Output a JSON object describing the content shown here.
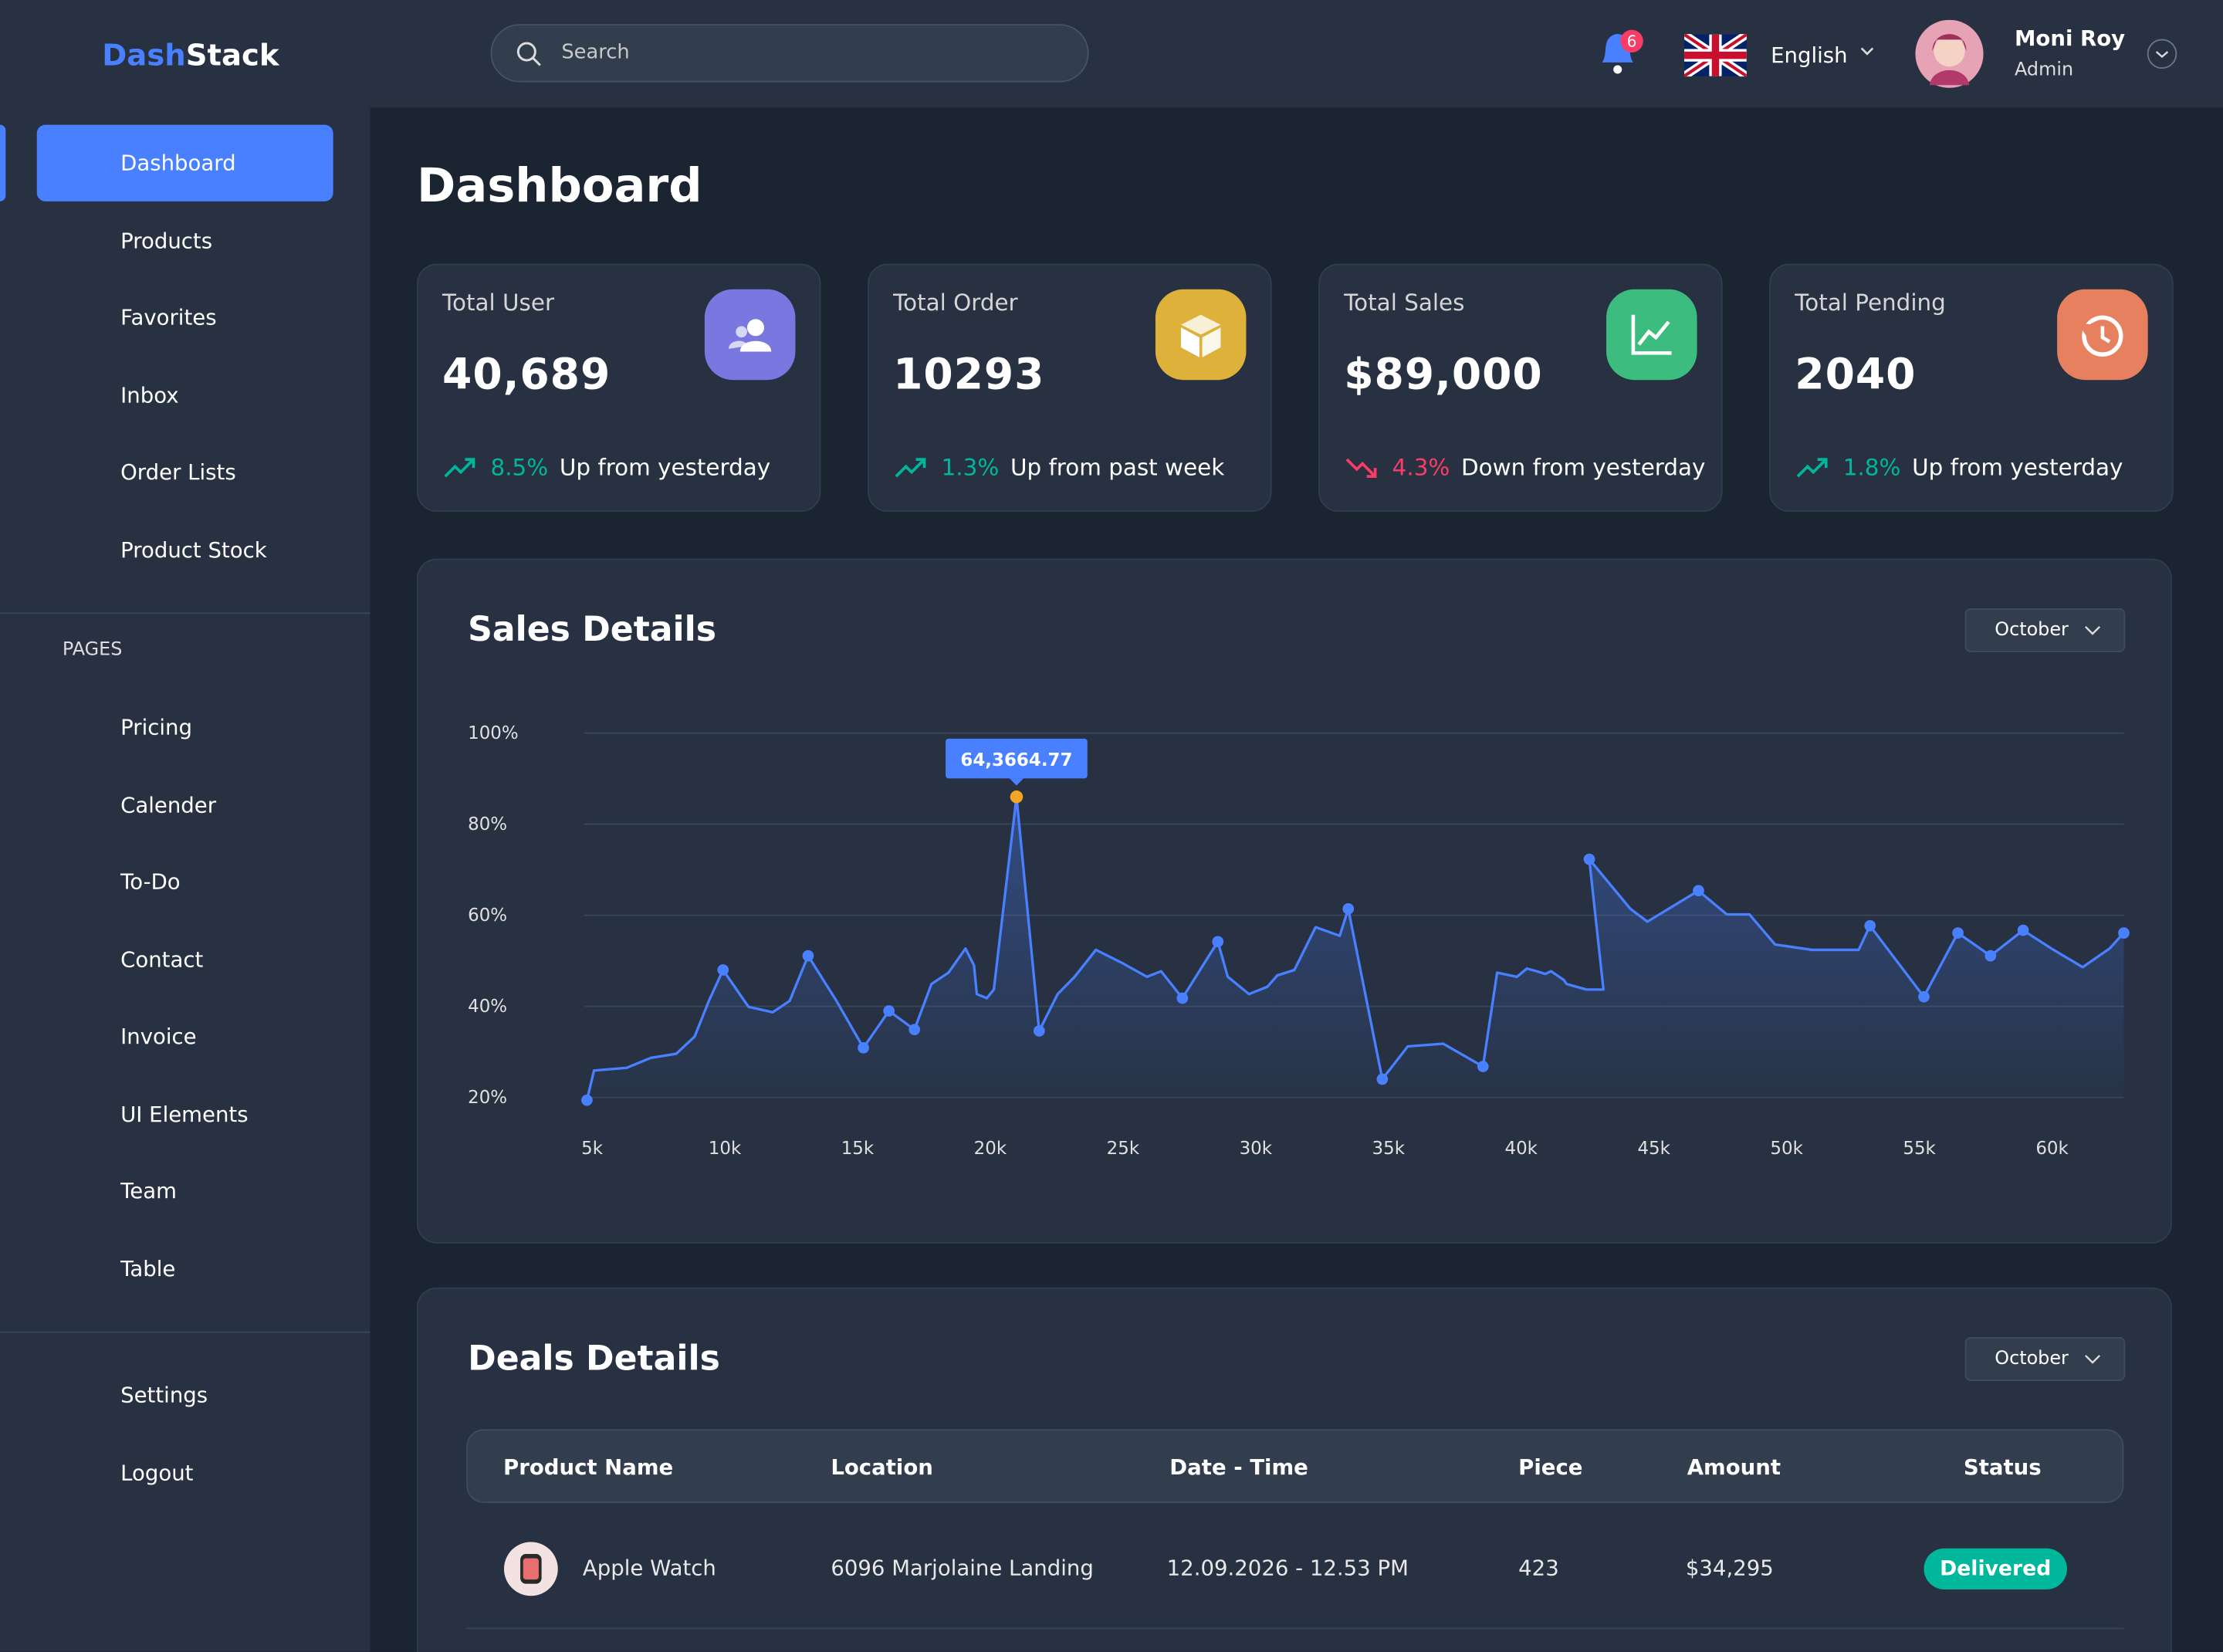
{
  "header": {
    "logo_part1": "Dash",
    "logo_part2": "Stack",
    "search_placeholder": "Search",
    "notification_count": "6",
    "language": "English",
    "user_name": "Moni Roy",
    "user_role": "Admin"
  },
  "sidebar": {
    "menu": [
      "Dashboard",
      "Products",
      "Favorites",
      "Inbox",
      "Order Lists",
      "Product Stock"
    ],
    "section_label": "PAGES",
    "pages": [
      "Pricing",
      "Calender",
      "To-Do",
      "Contact",
      "Invoice",
      "UI Elements",
      "Team",
      "Table"
    ],
    "footer": [
      "Settings",
      "Logout"
    ]
  },
  "page_title": "Dashboard",
  "stats": [
    {
      "title": "Total User",
      "value": "40,689",
      "change": "8.5%",
      "change_text": "Up from yesterday",
      "trend": "up"
    },
    {
      "title": "Total Order",
      "value": "10293",
      "change": "1.3%",
      "change_text": "Up from past week",
      "trend": "up"
    },
    {
      "title": "Total Sales",
      "value": "$89,000",
      "change": "4.3%",
      "change_text": "Down from yesterday",
      "trend": "down"
    },
    {
      "title": "Total Pending",
      "value": "2040",
      "change": "1.8%",
      "change_text": "Up from yesterday",
      "trend": "up"
    }
  ],
  "chart_data": {
    "type": "line",
    "title": "Sales Details",
    "period": "October",
    "annotation": "64,3664.77",
    "color": "#4880ff",
    "highlight_color": "#f5a524",
    "grid": true,
    "x": [
      4807,
      5074,
      6302,
      7210,
      8171,
      8866,
      9400,
      9934,
      10895,
      11803,
      12444,
      13138,
      14206,
      15221,
      16183,
      17144,
      17785,
      18426,
      19067,
      19388,
      19494,
      19868,
      20135,
      20989,
      21844,
      22538,
      23179,
      23980,
      24941,
      25903,
      26437,
      27238,
      28573,
      28947,
      29748,
      30442,
      30816,
      31457,
      32258,
      33166,
      33487,
      34769,
      35730,
      37066,
      38561,
      39095,
      39843,
      40217,
      40591,
      40911,
      41125,
      41606,
      41713,
      42460,
      43101,
      42567,
      44115,
      44756,
      46679,
      47747,
      48601,
      49563,
      50951,
      52714,
      53141,
      55171,
      56453,
      57681,
      58910,
      59978,
      61153,
      62168,
      62702
    ],
    "values": [
      19.4,
      25.9,
      26.5,
      28.7,
      29.6,
      33.4,
      41.2,
      48.0,
      39.9,
      38.7,
      41.2,
      51.1,
      41.2,
      30.9,
      39.0,
      34.9,
      44.9,
      47.4,
      52.7,
      49.0,
      42.7,
      41.8,
      43.7,
      86.0,
      34.6,
      42.7,
      46.5,
      52.4,
      49.6,
      46.5,
      47.7,
      41.8,
      54.2,
      46.5,
      42.7,
      44.3,
      46.8,
      48.0,
      57.4,
      55.5,
      61.4,
      24.0,
      31.2,
      31.8,
      26.8,
      47.4,
      46.5,
      48.3,
      47.7,
      47.1,
      47.7,
      45.8,
      44.9,
      43.7,
      43.7,
      72.3,
      61.4,
      58.6,
      65.4,
      60.2,
      60.2,
      53.6,
      52.4,
      52.4,
      57.7,
      42.1,
      56.1,
      51.1,
      56.7,
      52.7,
      48.6,
      52.7,
      56.1
    ],
    "xlim": [
      4700,
      62700
    ],
    "ylim": [
      20,
      100
    ],
    "xticks": [
      {
        "value": 5000,
        "label": "5k"
      },
      {
        "value": 10000,
        "label": "10k"
      },
      {
        "value": 15000,
        "label": "15k"
      },
      {
        "value": 20000,
        "label": "20k"
      },
      {
        "value": 25000,
        "label": "25k"
      },
      {
        "value": 30000,
        "label": "30k"
      },
      {
        "value": 35000,
        "label": "35k"
      },
      {
        "value": 40000,
        "label": "40k"
      },
      {
        "value": 45000,
        "label": "45k"
      },
      {
        "value": 50000,
        "label": "50k"
      },
      {
        "value": 55000,
        "label": "55k"
      },
      {
        "value": 60000,
        "label": "60k"
      }
    ],
    "yticks": [
      {
        "value": 20,
        "label": "20%"
      },
      {
        "value": 40,
        "label": "40%"
      },
      {
        "value": 60,
        "label": "60%"
      },
      {
        "value": 80,
        "label": "80%"
      },
      {
        "value": 100,
        "label": "100%"
      }
    ]
  },
  "deals": {
    "title": "Deals Details",
    "period": "October",
    "columns": [
      "Product Name",
      "Location",
      "Date - Time",
      "Piece",
      "Amount",
      "Status"
    ],
    "rows": [
      [
        "Apple Watch",
        "6096 Marjolaine Landing",
        "12.09.2026 - 12.53 PM",
        "423",
        "$34,295",
        "Delivered"
      ]
    ]
  }
}
